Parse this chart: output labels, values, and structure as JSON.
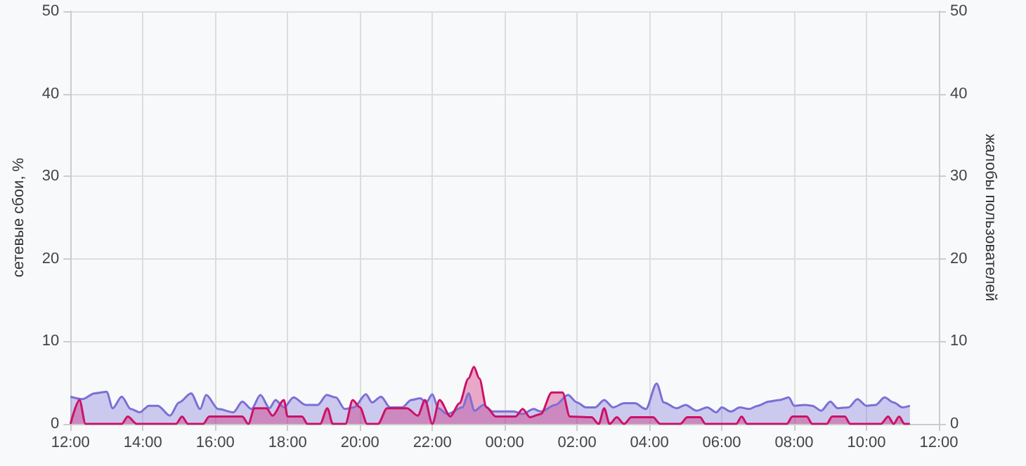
{
  "chart_data": {
    "type": "area",
    "ylabel": "сетевые сбои, %",
    "y2label": "жалобы пользователей",
    "xlim": [
      "--01-01T12:00",
      "--01-02T12:00"
    ],
    "xticks": [
      {
        "value": "--01-01T12:00",
        "label": "12:00"
      },
      {
        "value": "--01-01T14:00",
        "label": "14:00"
      },
      {
        "value": "--01-01T16:00",
        "label": "16:00"
      },
      {
        "value": "--01-01T18:00",
        "label": "18:00"
      },
      {
        "value": "--01-01T20:00",
        "label": "20:00"
      },
      {
        "value": "--01-01T22:00",
        "label": "22:00"
      },
      {
        "value": "--01-02T00:00",
        "label": "00:00"
      },
      {
        "value": "--01-02T02:00",
        "label": "02:00"
      },
      {
        "value": "--01-02T04:00",
        "label": "04:00"
      },
      {
        "value": "--01-02T06:00",
        "label": "06:00"
      },
      {
        "value": "--01-02T08:00",
        "label": "08:00"
      },
      {
        "value": "--01-02T10:00",
        "label": "10:00"
      },
      {
        "value": "--01-02T12:00",
        "label": "12:00"
      }
    ],
    "ylim": [
      0,
      50
    ],
    "yticks": [
      0,
      10,
      20,
      30,
      40,
      50
    ],
    "y2lim": [
      0,
      50
    ],
    "y2ticks": [
      0,
      10,
      20,
      30,
      40,
      50
    ],
    "grid": true,
    "marker": "none",
    "line_style": "solid",
    "series": [
      {
        "color": "#7b6fd6",
        "x": [
          "--01-01T12:00",
          "--01-01T12:20",
          "--01-01T12:40",
          "--01-01T13:00",
          "--01-01T13:10",
          "--01-01T13:25",
          "--01-01T13:40",
          "--01-01T13:55",
          "--01-01T14:10",
          "--01-01T14:25",
          "--01-01T14:45",
          "--01-01T15:00",
          "--01-01T15:20",
          "--01-01T15:35",
          "--01-01T15:45",
          "--01-01T16:05",
          "--01-01T16:30",
          "--01-01T16:45",
          "--01-01T17:00",
          "--01-01T17:15",
          "--01-01T17:30",
          "--01-01T17:40",
          "--01-01T17:54",
          "--01-01T18:10",
          "--01-01T18:30",
          "--01-01T18:50",
          "--01-01T19:05",
          "--01-01T19:20",
          "--01-01T19:35",
          "--01-01T19:50",
          "--01-01T20:10",
          "--01-01T20:20",
          "--01-01T20:35",
          "--01-01T20:50",
          "--01-01T21:10",
          "--01-01T21:25",
          "--01-01T21:40",
          "--01-01T21:50",
          "--01-01T22:00",
          "--01-01T22:10",
          "--01-01T22:25",
          "--01-01T22:50",
          "--01-01T23:00",
          "--01-01T23:10",
          "--01-01T23:25",
          "--01-01T23:40",
          "--01-02T00:00",
          "--01-02T00:15",
          "--01-02T00:30",
          "--01-02T00:48",
          "--01-02T01:00",
          "--01-02T01:24",
          "--01-02T01:45",
          "--01-02T02:00",
          "--01-02T02:15",
          "--01-02T02:30",
          "--01-02T02:45",
          "--01-02T03:00",
          "--01-02T03:18",
          "--01-02T03:36",
          "--01-02T03:54",
          "--01-02T04:12",
          "--01-02T04:24",
          "--01-02T04:45",
          "--01-02T05:00",
          "--01-02T05:18",
          "--01-02T05:36",
          "--01-02T05:51",
          "--01-02T06:00",
          "--01-02T06:15",
          "--01-02T06:30",
          "--01-02T06:45",
          "--01-02T07:00",
          "--01-02T07:18",
          "--01-02T07:36",
          "--01-02T07:51",
          "--01-02T08:00",
          "--01-02T08:18",
          "--01-02T08:30",
          "--01-02T08:45",
          "--01-02T09:00",
          "--01-02T09:12",
          "--01-02T09:30",
          "--01-02T09:45",
          "--01-02T10:00",
          "--01-02T10:15",
          "--01-02T10:30",
          "--01-02T10:45",
          "--01-02T11:00",
          "--01-02T11:12"
        ],
        "values": [
          3.3,
          3.0,
          3.7,
          3.9,
          1.9,
          3.3,
          1.8,
          1.4,
          2.2,
          2.2,
          1.0,
          2.6,
          3.7,
          1.8,
          3.5,
          1.8,
          1.4,
          2.7,
          1.8,
          3.5,
          1.9,
          2.9,
          2.0,
          3.2,
          2.3,
          2.3,
          3.5,
          3.2,
          1.8,
          2.0,
          3.6,
          2.6,
          3.3,
          2.0,
          2.0,
          2.9,
          3.1,
          2.6,
          3.6,
          1.9,
          1.2,
          2.0,
          3.7,
          1.6,
          2.3,
          1.5,
          1.5,
          1.5,
          1.2,
          1.8,
          1.5,
          2.3,
          3.5,
          2.6,
          2.0,
          2.0,
          2.9,
          2.0,
          2.5,
          2.5,
          1.8,
          4.9,
          2.6,
          1.9,
          2.3,
          1.6,
          2.0,
          1.4,
          2.0,
          1.5,
          2.0,
          1.8,
          2.2,
          2.7,
          2.9,
          3.2,
          2.2,
          2.3,
          2.2,
          1.6,
          2.7,
          1.9,
          2.0,
          3.0,
          2.2,
          2.3,
          3.2,
          2.6,
          2.0,
          2.2
        ]
      },
      {
        "color": "#cc1166",
        "x": [
          "--01-01T12:00",
          "--01-01T12:15",
          "--01-01T12:25",
          "--01-01T13:25",
          "--01-01T13:35",
          "--01-01T13:50",
          "--01-01T14:55",
          "--01-01T15:05",
          "--01-01T15:15",
          "--01-01T15:40",
          "--01-01T15:50",
          "--01-01T16:45",
          "--01-01T16:55",
          "--01-01T17:05",
          "--01-01T17:25",
          "--01-01T17:35",
          "--01-01T17:54",
          "--01-01T18:00",
          "--01-01T18:24",
          "--01-01T18:33",
          "--01-01T18:54",
          "--01-01T19:06",
          "--01-01T19:15",
          "--01-01T19:36",
          "--01-01T19:48",
          "--01-01T20:00",
          "--01-01T20:12",
          "--01-01T20:30",
          "--01-01T20:45",
          "--01-01T21:18",
          "--01-01T21:36",
          "--01-01T21:48",
          "--01-01T22:00",
          "--01-01T22:12",
          "--01-01T22:30",
          "--01-01T22:45",
          "--01-01T23:00",
          "--01-01T23:09",
          "--01-01T23:18",
          "--01-01T23:30",
          "--01-01T23:45",
          "--01-02T00:00",
          "--01-02T00:18",
          "--01-02T00:30",
          "--01-02T00:42",
          "--01-02T01:00",
          "--01-02T01:18",
          "--01-02T01:36",
          "--01-02T01:48",
          "--01-02T02:24",
          "--01-02T02:36",
          "--01-02T02:45",
          "--01-02T02:54",
          "--01-02T03:06",
          "--01-02T03:18",
          "--01-02T03:30",
          "--01-02T04:06",
          "--01-02T04:18",
          "--01-02T04:51",
          "--01-02T05:03",
          "--01-02T05:24",
          "--01-02T05:33",
          "--01-02T06:00",
          "--01-02T06:24",
          "--01-02T06:33",
          "--01-02T06:42",
          "--01-02T07:48",
          "--01-02T07:57",
          "--01-02T08:21",
          "--01-02T08:30",
          "--01-02T08:54",
          "--01-02T09:03",
          "--01-02T09:24",
          "--01-02T09:33",
          "--01-02T10:24",
          "--01-02T10:36",
          "--01-02T10:45",
          "--01-02T10:54",
          "--01-02T11:03",
          "--01-02T11:12"
        ],
        "values": [
          0,
          2.9,
          0,
          0,
          0.9,
          0,
          0,
          0.9,
          0,
          0,
          0.9,
          0.9,
          0,
          1.9,
          1.9,
          1.0,
          2.9,
          0.9,
          0.9,
          0,
          0,
          1.9,
          0,
          0,
          2.9,
          2.0,
          0,
          0,
          1.9,
          1.9,
          1.0,
          2.9,
          0,
          2.9,
          0.9,
          2.5,
          5.5,
          6.9,
          5.5,
          2.0,
          0.9,
          0.9,
          0.9,
          1.8,
          0.8,
          1.2,
          3.8,
          3.8,
          0.9,
          0.8,
          0,
          1.9,
          0,
          0.8,
          0,
          0.8,
          0.8,
          0,
          0,
          0.8,
          0.8,
          0,
          0,
          0,
          0.9,
          0,
          0,
          0.9,
          0.9,
          0,
          0,
          0.9,
          0.9,
          0,
          0,
          0.9,
          0,
          0.9,
          0,
          0
        ]
      }
    ]
  }
}
